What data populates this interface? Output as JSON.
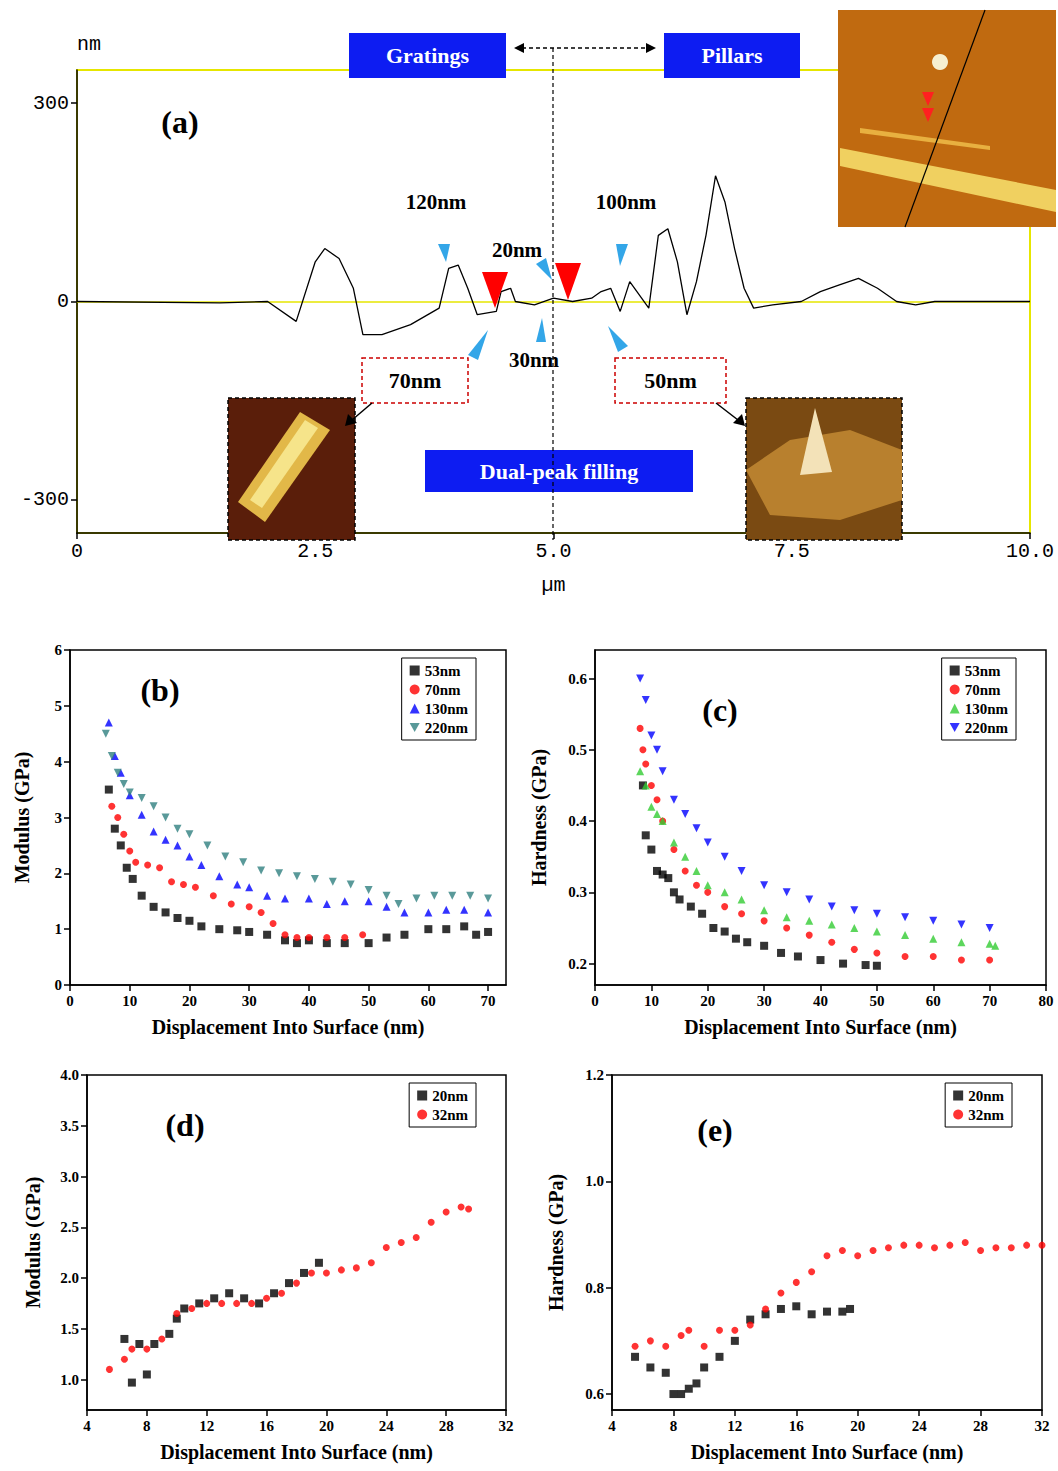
{
  "chart_data": [
    {
      "type": "line",
      "title": "(a)",
      "x_label": "µm",
      "y_label": "nm",
      "xlim": [
        0,
        10
      ],
      "xticks": [
        0,
        2.5,
        {
          "value": 5,
          "label": "5.0"
        },
        7.5,
        {
          "value": 10,
          "label": "10.0"
        }
      ],
      "ylim": [
        -350,
        350
      ],
      "yticks": [
        -300,
        0,
        300
      ],
      "grid": false,
      "x": [
        0,
        1.5,
        2,
        2.3,
        2.5,
        2.6,
        2.75,
        2.9,
        3,
        3.2,
        3.5,
        3.8,
        3.9,
        4,
        4.1,
        4.2,
        4.4,
        4.45,
        4.55,
        4.6,
        4.8,
        5,
        5.2,
        5.4,
        5.5,
        5.6,
        5.7,
        5.8,
        5.9,
        6,
        6.1,
        6.2,
        6.3,
        6.4,
        6.5,
        6.6,
        6.7,
        6.8,
        6.9,
        7,
        7.1,
        7.3,
        7.6,
        7.8,
        8,
        8.2,
        8.4,
        8.6,
        8.8,
        9,
        10
      ],
      "values": [
        0,
        -2,
        0,
        -30,
        60,
        80,
        65,
        20,
        -50,
        -50,
        -35,
        -10,
        50,
        55,
        20,
        -20,
        -15,
        15,
        20,
        0,
        -5,
        5,
        0,
        5,
        15,
        20,
        -15,
        30,
        10,
        -10,
        100,
        110,
        60,
        -20,
        30,
        100,
        190,
        150,
        80,
        20,
        -10,
        -5,
        0,
        15,
        25,
        35,
        20,
        0,
        -5,
        0,
        0
      ],
      "color": "#000000",
      "annotations": {
        "left_region": "Gratings",
        "right_region": "Pillars",
        "center": "Dual-peak filling",
        "grating_peak": "120nm",
        "grating_gap": "20nm",
        "pillar_peak": "100nm",
        "gap_width": "30nm",
        "grating_width": "70nm",
        "pillar_width": "50nm"
      }
    },
    {
      "type": "scatter",
      "title": "(b)",
      "x_label": "Displacement Into Surface (nm)",
      "y_label": "Modulus (GPa)",
      "xlim": [
        0,
        73
      ],
      "xticks": [
        0,
        10,
        20,
        30,
        40,
        50,
        60,
        70
      ],
      "ylim": [
        0,
        6
      ],
      "yticks": [
        0,
        1,
        2,
        3,
        4,
        5,
        6
      ],
      "grid": false,
      "legend": "upper right",
      "series": [
        {
          "name": "53nm",
          "color": "#000000",
          "marker": "square",
          "x": [
            6.5,
            7.5,
            8.5,
            9.5,
            10.5,
            12,
            14,
            16,
            18,
            20,
            22,
            25,
            28,
            30,
            33,
            36,
            38,
            40,
            43,
            46,
            50,
            53,
            56,
            60,
            63,
            66,
            68,
            70
          ],
          "values": [
            3.5,
            2.8,
            2.5,
            2.1,
            1.9,
            1.6,
            1.4,
            1.3,
            1.2,
            1.15,
            1.05,
            1.0,
            0.98,
            0.95,
            0.9,
            0.8,
            0.75,
            0.8,
            0.75,
            0.75,
            0.75,
            0.85,
            0.9,
            1.0,
            1.0,
            1.05,
            0.9,
            0.95
          ]
        },
        {
          "name": "70nm",
          "color": "#ff0000",
          "marker": "circle",
          "x": [
            7,
            8,
            9,
            10,
            11,
            13,
            15,
            17,
            19,
            21,
            24,
            27,
            30,
            32,
            34,
            36,
            38,
            40,
            43,
            46,
            49
          ],
          "values": [
            3.2,
            3.0,
            2.7,
            2.4,
            2.2,
            2.15,
            2.1,
            1.85,
            1.8,
            1.75,
            1.6,
            1.45,
            1.4,
            1.3,
            1.1,
            0.9,
            0.85,
            0.85,
            0.85,
            0.85,
            0.9
          ]
        },
        {
          "name": "130nm",
          "color": "#0000ff",
          "marker": "triangle",
          "x": [
            6.5,
            7.5,
            8.5,
            10,
            12,
            14,
            16,
            18,
            20,
            22,
            25,
            28,
            30,
            33,
            36,
            40,
            43,
            46,
            50,
            53,
            56,
            60,
            63,
            66,
            70
          ],
          "values": [
            4.7,
            4.1,
            3.8,
            3.4,
            3.05,
            2.75,
            2.6,
            2.5,
            2.3,
            2.15,
            1.95,
            1.8,
            1.75,
            1.6,
            1.55,
            1.55,
            1.45,
            1.5,
            1.5,
            1.4,
            1.3,
            1.3,
            1.35,
            1.35,
            1.3
          ]
        },
        {
          "name": "220nm",
          "color": "#2f7f7f",
          "marker": "triangle_down",
          "x": [
            6,
            7,
            8,
            9,
            10,
            12,
            14,
            16,
            18,
            20,
            23,
            26,
            29,
            32,
            35,
            38,
            41,
            44,
            47,
            50,
            53,
            55,
            58,
            61,
            64,
            67,
            70
          ],
          "values": [
            4.5,
            4.1,
            3.8,
            3.6,
            3.45,
            3.35,
            3.2,
            3.0,
            2.8,
            2.7,
            2.5,
            2.3,
            2.2,
            2.05,
            2.0,
            1.95,
            1.9,
            1.85,
            1.8,
            1.7,
            1.6,
            1.45,
            1.55,
            1.6,
            1.6,
            1.6,
            1.55
          ]
        }
      ]
    },
    {
      "type": "scatter",
      "title": "(c)",
      "x_label": "Displacement Into Surface (nm)",
      "y_label": "Hardness (GPa)",
      "xlim": [
        0,
        80
      ],
      "xticks": [
        0,
        10,
        20,
        30,
        40,
        50,
        60,
        70,
        80
      ],
      "ylim": [
        0.17,
        0.64
      ],
      "yticks": [
        0.2,
        0.3,
        0.4,
        0.5,
        0.6
      ],
      "grid": false,
      "legend": "upper right",
      "series": [
        {
          "name": "53nm",
          "color": "#000000",
          "marker": "square",
          "x": [
            8.5,
            9,
            10,
            11,
            12,
            13,
            14,
            15,
            17,
            19,
            21,
            23,
            25,
            27,
            30,
            33,
            36,
            40,
            44,
            48,
            50
          ],
          "values": [
            0.45,
            0.38,
            0.36,
            0.33,
            0.325,
            0.32,
            0.3,
            0.29,
            0.28,
            0.27,
            0.25,
            0.245,
            0.235,
            0.23,
            0.225,
            0.215,
            0.21,
            0.205,
            0.2,
            0.198,
            0.197
          ]
        },
        {
          "name": "70nm",
          "color": "#ff0000",
          "marker": "circle",
          "x": [
            8,
            8.5,
            9,
            10,
            11,
            12,
            14,
            16,
            18,
            20,
            23,
            26,
            30,
            34,
            38,
            42,
            46,
            50,
            55,
            60,
            65,
            70
          ],
          "values": [
            0.53,
            0.5,
            0.48,
            0.45,
            0.43,
            0.4,
            0.36,
            0.33,
            0.31,
            0.3,
            0.28,
            0.27,
            0.26,
            0.25,
            0.24,
            0.23,
            0.22,
            0.215,
            0.21,
            0.21,
            0.205,
            0.205
          ]
        },
        {
          "name": "130nm",
          "color": "#33cc33",
          "marker": "triangle",
          "x": [
            8,
            9,
            10,
            11,
            12,
            14,
            16,
            18,
            20,
            23,
            26,
            30,
            34,
            38,
            42,
            46,
            50,
            55,
            60,
            65,
            70,
            71
          ],
          "values": [
            0.47,
            0.45,
            0.42,
            0.41,
            0.4,
            0.37,
            0.35,
            0.33,
            0.31,
            0.3,
            0.29,
            0.275,
            0.265,
            0.26,
            0.255,
            0.25,
            0.245,
            0.24,
            0.235,
            0.23,
            0.228,
            0.225
          ]
        },
        {
          "name": "220nm",
          "color": "#0000ff",
          "marker": "triangle_down",
          "x": [
            8,
            9,
            10,
            11,
            12,
            14,
            16,
            18,
            20,
            23,
            26,
            30,
            34,
            38,
            42,
            46,
            50,
            55,
            60,
            65,
            70
          ],
          "values": [
            0.6,
            0.57,
            0.52,
            0.5,
            0.47,
            0.43,
            0.41,
            0.39,
            0.37,
            0.35,
            0.33,
            0.31,
            0.3,
            0.29,
            0.28,
            0.275,
            0.27,
            0.265,
            0.26,
            0.255,
            0.25
          ]
        }
      ]
    },
    {
      "type": "scatter",
      "title": "(d)",
      "x_label": "Displacement Into Surface (nm)",
      "y_label": "Modulus (GPa)",
      "xlim": [
        4,
        32
      ],
      "xticks": [
        4,
        8,
        12,
        16,
        20,
        24,
        28,
        32
      ],
      "ylim": [
        0.7,
        4.0
      ],
      "yticks": [
        {
          "value": 1,
          "label": "1.0"
        },
        1.5,
        {
          "value": 2,
          "label": "2.0"
        },
        2.5,
        {
          "value": 3,
          "label": "3.0"
        },
        3.5,
        {
          "value": 4,
          "label": "4.0"
        }
      ],
      "grid": false,
      "legend": "upper right",
      "series": [
        {
          "name": "20nm",
          "color": "#000000",
          "marker": "square",
          "x": [
            6.5,
            7,
            7.5,
            8,
            8.5,
            9.5,
            10,
            10.5,
            11.5,
            12.5,
            13.5,
            14.5,
            15.5,
            16.5,
            17.5,
            18.5,
            19.5
          ],
          "values": [
            1.4,
            0.97,
            1.35,
            1.05,
            1.35,
            1.45,
            1.6,
            1.7,
            1.75,
            1.8,
            1.85,
            1.8,
            1.75,
            1.85,
            1.95,
            2.05,
            2.15
          ]
        },
        {
          "name": "32nm",
          "color": "#ff0000",
          "marker": "circle",
          "x": [
            5.5,
            6.5,
            7,
            8,
            9,
            10,
            11,
            12,
            13,
            14,
            15,
            16,
            17,
            18,
            19,
            20,
            21,
            22,
            23,
            24,
            25,
            26,
            27,
            28,
            29,
            29.5
          ],
          "values": [
            1.1,
            1.2,
            1.3,
            1.3,
            1.4,
            1.65,
            1.7,
            1.75,
            1.75,
            1.75,
            1.75,
            1.8,
            1.85,
            1.95,
            2.05,
            2.05,
            2.08,
            2.1,
            2.15,
            2.3,
            2.35,
            2.4,
            2.55,
            2.65,
            2.7,
            2.68
          ]
        }
      ]
    },
    {
      "type": "scatter",
      "title": "(e)",
      "x_label": "Displacement Into Surface (nm)",
      "y_label": "Hardness (GPa)",
      "xlim": [
        4,
        32
      ],
      "xticks": [
        4,
        8,
        12,
        16,
        20,
        24,
        28,
        32
      ],
      "ylim": [
        0.57,
        1.2
      ],
      "yticks": [
        0.6,
        0.8,
        {
          "value": 1,
          "label": "1.0"
        },
        1.2
      ],
      "grid": false,
      "legend": "upper right",
      "series": [
        {
          "name": "20nm",
          "color": "#000000",
          "marker": "square",
          "x": [
            5.5,
            6.5,
            7.5,
            8,
            8.5,
            9,
            9.5,
            10,
            11,
            12,
            13,
            14,
            15,
            16,
            17,
            18,
            19,
            19.5
          ],
          "values": [
            0.67,
            0.65,
            0.64,
            0.6,
            0.6,
            0.61,
            0.62,
            0.65,
            0.67,
            0.7,
            0.74,
            0.75,
            0.76,
            0.765,
            0.75,
            0.755,
            0.755,
            0.76
          ]
        },
        {
          "name": "32nm",
          "color": "#ff0000",
          "marker": "circle",
          "x": [
            5.5,
            6.5,
            7.5,
            8.5,
            9,
            10,
            11,
            12,
            13,
            14,
            15,
            16,
            17,
            18,
            19,
            20,
            21,
            22,
            23,
            24,
            25,
            26,
            27,
            28,
            29,
            30,
            31,
            32
          ],
          "values": [
            0.69,
            0.7,
            0.69,
            0.71,
            0.72,
            0.69,
            0.72,
            0.72,
            0.73,
            0.76,
            0.79,
            0.81,
            0.83,
            0.86,
            0.87,
            0.86,
            0.87,
            0.875,
            0.88,
            0.88,
            0.875,
            0.88,
            0.885,
            0.87,
            0.875,
            0.875,
            0.88,
            0.88
          ]
        }
      ]
    }
  ]
}
